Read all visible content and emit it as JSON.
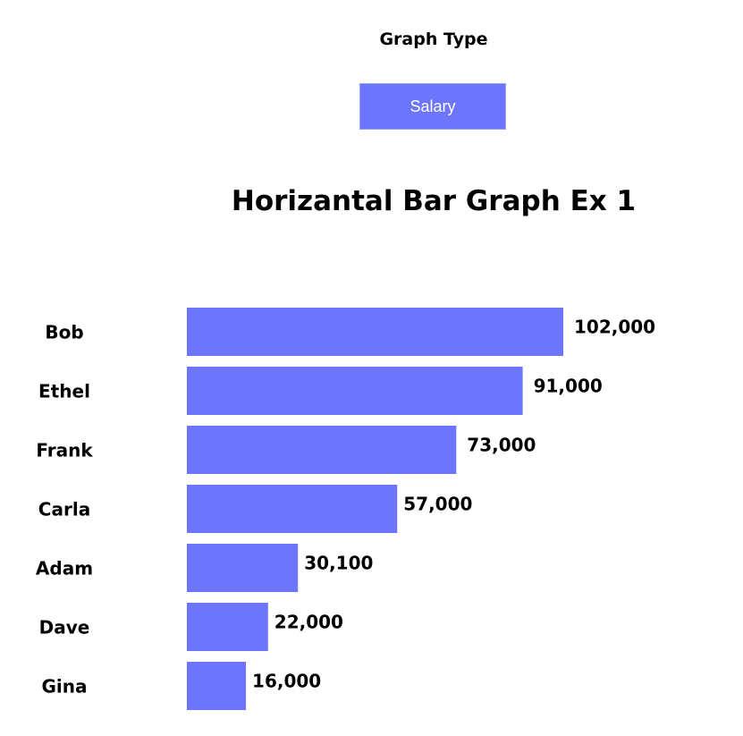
{
  "controls": {
    "graph_type_label": "Graph Type",
    "type_button_label": "Salary"
  },
  "colors": {
    "bar": "#6d75fc",
    "button": "#6d75fc"
  },
  "chart_data": {
    "type": "bar",
    "orientation": "horizontal",
    "title": "Horizantal Bar Graph Ex 1",
    "xlabel": "",
    "ylabel": "",
    "categories": [
      "Bob",
      "Ethel",
      "Frank",
      "Carla",
      "Adam",
      "Dave",
      "Gina"
    ],
    "values": [
      102000,
      91000,
      73000,
      57000,
      30100,
      22000,
      16000
    ],
    "value_labels": [
      "102,000",
      "91,000",
      "73,000",
      "57,000",
      "30,100",
      "22,000",
      "16,000"
    ],
    "xlim": [
      0,
      102000
    ],
    "grid": false,
    "legend": "none"
  }
}
